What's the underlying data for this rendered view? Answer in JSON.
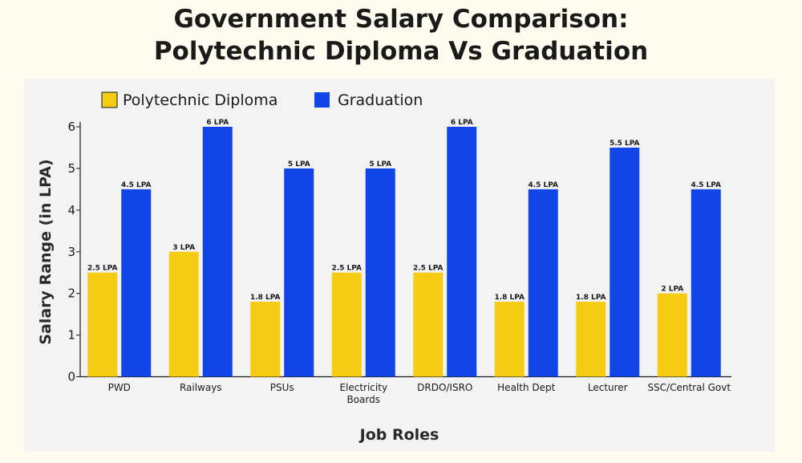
{
  "chart_data": {
    "type": "bar",
    "title_lines": [
      "Government Salary Comparison:",
      "Polytechnic Diploma Vs Graduation"
    ],
    "xlabel": "Job Roles",
    "ylabel": "Salary Range (in LPA)",
    "ylim": [
      0,
      6
    ],
    "yticks": [
      0,
      1,
      2,
      3,
      4,
      5,
      6
    ],
    "categories": [
      [
        "PWD"
      ],
      [
        "Railways"
      ],
      [
        "PSUs"
      ],
      [
        "Electricity",
        "Boards"
      ],
      [
        "DRDO/ISRO"
      ],
      [
        "Health Dept"
      ],
      [
        "Lecturer"
      ],
      [
        "SSC/Central Govt"
      ]
    ],
    "series": [
      {
        "name": "Polytechnic Diploma",
        "color": "#f5cc12",
        "values": [
          2.5,
          3,
          1.8,
          2.5,
          2.5,
          1.8,
          1.8,
          2
        ],
        "labels": [
          "2.5 LPA",
          "3 LPA",
          "1.8 LPA",
          "2.5 LPA",
          "2.5 LPA",
          "1.8 LPA",
          "1.8 LPA",
          "2 LPA"
        ]
      },
      {
        "name": "Graduation",
        "color": "#1245e8",
        "values": [
          4.5,
          6,
          5,
          5,
          6,
          4.5,
          5.5,
          4.5
        ],
        "labels": [
          "4.5 LPA",
          "6 LPA",
          "5 LPA",
          "5 LPA",
          "6 LPA",
          "4.5 LPA",
          "5.5 LPA",
          "4.5 LPA"
        ]
      }
    ],
    "legend_position": "top-left",
    "grid": false
  }
}
